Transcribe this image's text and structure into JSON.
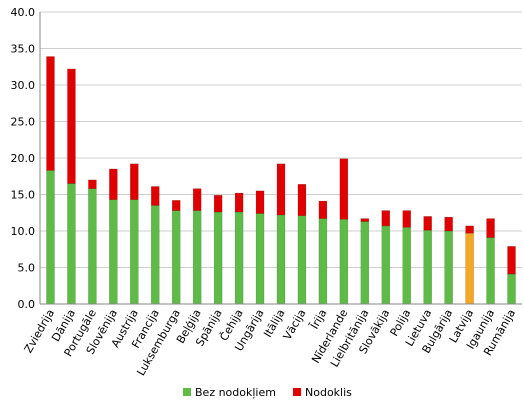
{
  "chart_data": {
    "type": "bar",
    "stacked": true,
    "categories": [
      "Zviedrija",
      "Dānija",
      "Portugāle",
      "Slovēnija",
      "Austrija",
      "Francija",
      "Luksemburga",
      "Beļģija",
      "Spānija",
      "Čehija",
      "Ungārija",
      "Itālija",
      "Vācija",
      "Īrija",
      "Nīderlande",
      "Lielbritānija",
      "Slovākija",
      "Polija",
      "Lietuva",
      "Bulgārija",
      "Latvija",
      "Igaunija",
      "Rumānija"
    ],
    "series": [
      {
        "name": "Bez nodokļiem",
        "color": "#5DBB46",
        "values": [
          18.3,
          16.5,
          15.8,
          14.3,
          14.3,
          13.5,
          12.8,
          12.8,
          12.6,
          12.6,
          12.4,
          12.2,
          12.1,
          11.7,
          11.6,
          11.3,
          10.7,
          10.5,
          10.1,
          10.0,
          9.7,
          9.1,
          4.1
        ]
      },
      {
        "name": "Nodoklis",
        "color": "#E00000",
        "values": [
          15.6,
          15.7,
          1.2,
          4.2,
          4.9,
          2.6,
          1.4,
          3.0,
          2.3,
          2.6,
          3.1,
          7.0,
          4.3,
          2.4,
          8.3,
          0.4,
          2.1,
          2.3,
          1.9,
          1.9,
          1.0,
          2.6,
          3.8
        ]
      }
    ],
    "highlight": {
      "category": "Latvija",
      "color": "#F5A623"
    },
    "ylim": [
      0,
      40
    ],
    "yticks": [
      "0.0",
      "5.0",
      "10.0",
      "15.0",
      "20.0",
      "25.0",
      "30.0",
      "35.0",
      "40.0"
    ],
    "grid": true,
    "legend_position": "bottom",
    "title": "",
    "xlabel": "",
    "ylabel": ""
  }
}
